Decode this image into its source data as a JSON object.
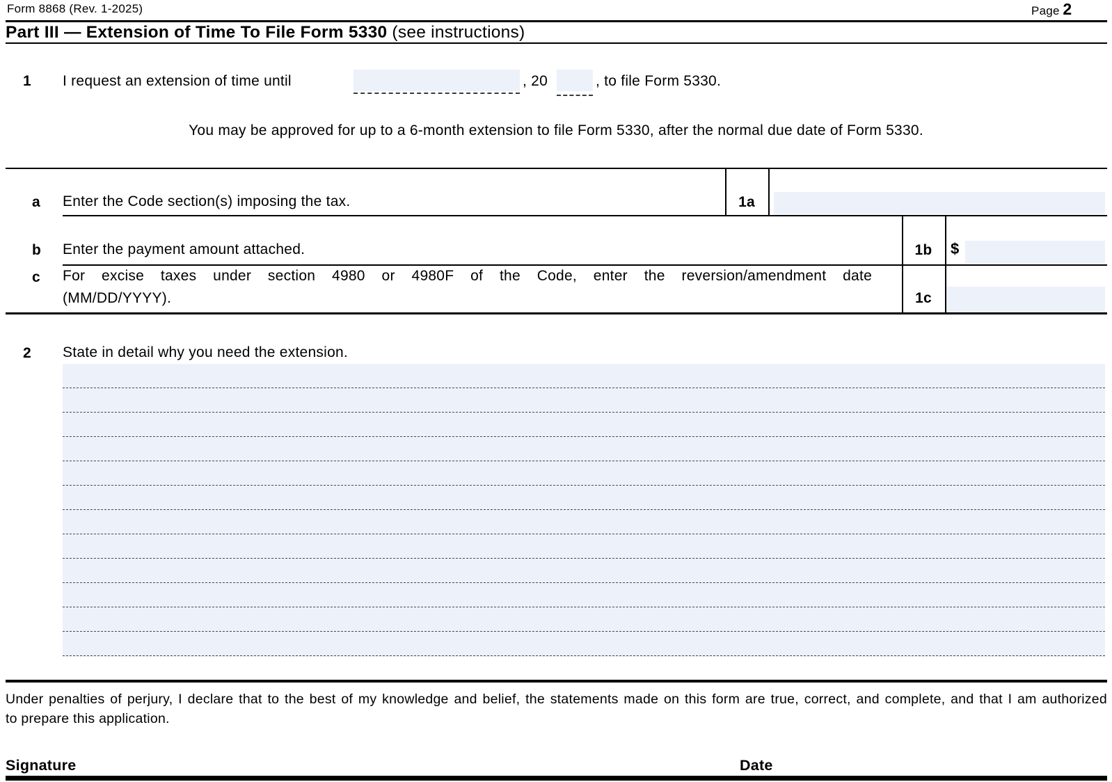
{
  "header": {
    "form_id": "Form 8868 (Rev. 1-2025)",
    "page_label": "Page",
    "page_number": "2"
  },
  "part3": {
    "title": "Part III — Extension of Time To File Form 5330",
    "note": "(see instructions)"
  },
  "line1": {
    "number": "1",
    "before": "I request an extension of time until",
    "date_value": "",
    "mid": ", 20",
    "year_value": "",
    "after": ", to file Form 5330.",
    "approval_note": "You may be approved for up to a 6-month extension to file Form 5330, after the normal due date of Form 5330."
  },
  "row_a": {
    "letter": "a",
    "label": "Enter the Code section(s) imposing the tax.",
    "box": "1a",
    "value": ""
  },
  "row_b": {
    "letter": "b",
    "label": "Enter the payment amount attached.",
    "box": "1b",
    "currency": "$",
    "value": ""
  },
  "row_c": {
    "letter": "c",
    "label_line1": "For excise taxes under section 4980 or 4980F of the Code, enter the reversion/amendment date",
    "label_line2": "(MM/DD/YYYY).",
    "box": "1c",
    "value": ""
  },
  "line2": {
    "number": "2",
    "label": "State in detail why you need the extension.",
    "value": ""
  },
  "footer": {
    "declaration_line1": "Under penalties of perjury, I declare that to the best of my knowledge and belief, the statements made on this form are true, correct, and complete, and that I am authorized",
    "declaration_line2": "to prepare this application.",
    "signature_label": "Signature",
    "date_label": "Date"
  },
  "colors": {
    "field_bg": "#edf1fa",
    "line": "#000000"
  }
}
